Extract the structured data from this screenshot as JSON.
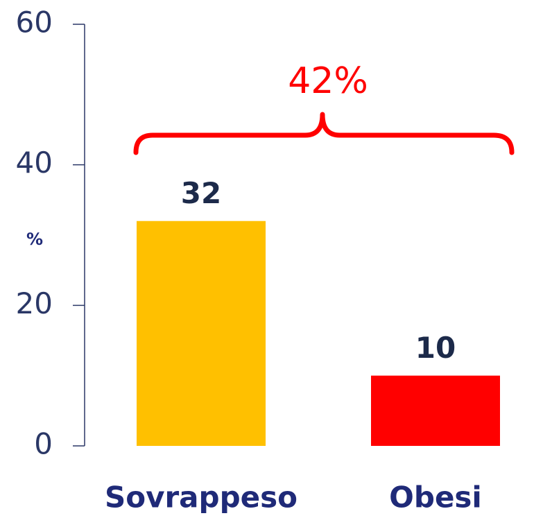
{
  "chart_data": {
    "type": "bar",
    "y_label": "%",
    "annotation": "42%",
    "categories": [
      "Sovrappeso",
      "Obesi"
    ],
    "values": [
      32,
      10
    ],
    "colors": [
      "#ffc000",
      "#ff0000"
    ],
    "ylim": [
      0,
      60
    ],
    "yticks": [
      0,
      20,
      40,
      60
    ],
    "grid": false
  }
}
